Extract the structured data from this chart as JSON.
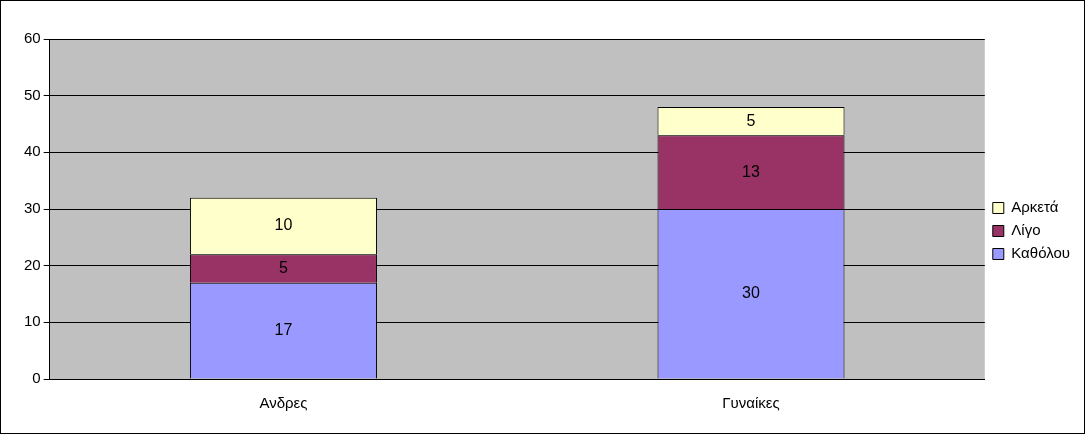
{
  "chart_data": {
    "type": "bar",
    "stacked": true,
    "categories": [
      "Ανδρες",
      "Γυναίκες"
    ],
    "series": [
      {
        "name": "Καθόλου",
        "color": "#9999ff",
        "values": [
          17,
          30
        ]
      },
      {
        "name": "Λίγο",
        "color": "#993366",
        "values": [
          5,
          13
        ]
      },
      {
        "name": "Αρκετά",
        "color": "#ffffcc",
        "values": [
          10,
          5
        ]
      }
    ],
    "ylim": [
      0,
      60
    ],
    "yticks": [
      0,
      10,
      20,
      30,
      40,
      50,
      60
    ],
    "grid": "y",
    "legend": "right",
    "data_labels": true
  }
}
